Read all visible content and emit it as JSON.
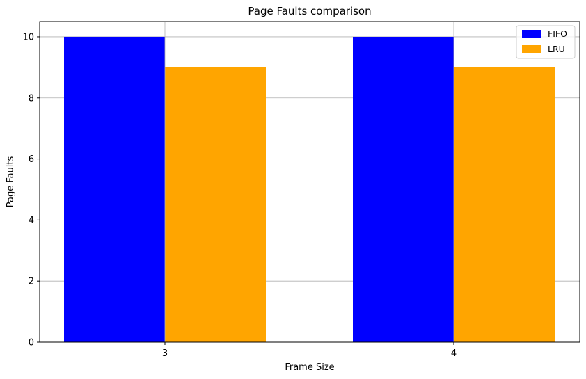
{
  "chart_data": {
    "type": "bar",
    "title": "Page Faults comparison",
    "xlabel": "Frame Size",
    "ylabel": "Page Faults",
    "categories": [
      "3",
      "4"
    ],
    "series": [
      {
        "name": "FIFO",
        "values": [
          10,
          9.999
        ],
        "color": "#0000ff"
      },
      {
        "name": "LRU",
        "values": [
          9,
          9
        ],
        "color": "#ffa500"
      }
    ],
    "ylim": [
      0,
      10.5
    ],
    "yticks": [
      0,
      2,
      4,
      6,
      8,
      10
    ],
    "grid": true,
    "legend_position": "top-right"
  }
}
